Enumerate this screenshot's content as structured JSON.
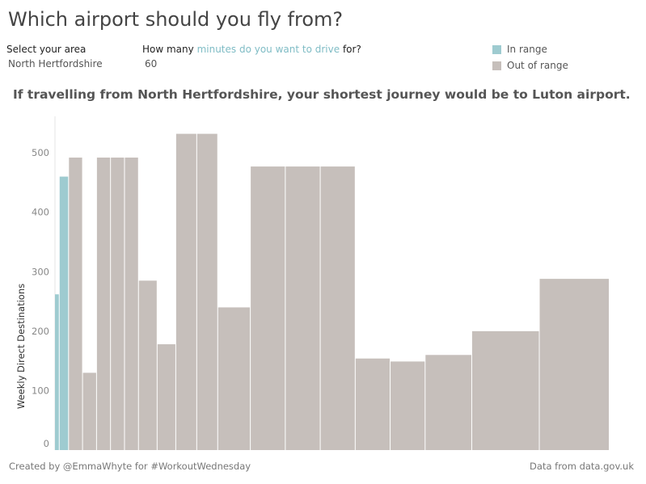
{
  "header": {
    "title": "Which airport should you fly from?"
  },
  "controls": {
    "area": {
      "label": "Select your area",
      "value": "North Hertfordshire"
    },
    "minutes": {
      "label_before": "How many ",
      "label_highlight": "minutes do you want to drive",
      "label_after": " for?",
      "value": "60"
    }
  },
  "legend": {
    "items": [
      {
        "label": "In range",
        "color": "#9ecbd0"
      },
      {
        "label": "Out of range",
        "color": "#c6bfbb"
      }
    ]
  },
  "headline": "If travelling from North Hertfordshire, your shortest journey would be to Luton airport.",
  "chart_data": {
    "type": "bar",
    "ylabel": "Weekly Direct Destinations",
    "xlabel": "",
    "ylim": [
      0,
      560
    ],
    "yticks": [
      0,
      100,
      200,
      300,
      400,
      500
    ],
    "grid": false,
    "legend_position": "top-right",
    "note": "variable-width bars; widths in relative units",
    "bars": [
      {
        "value": 262,
        "width": 1,
        "status": "In range"
      },
      {
        "value": 460,
        "width": 2,
        "status": "In range"
      },
      {
        "value": 492,
        "width": 3,
        "status": "Out of range"
      },
      {
        "value": 130,
        "width": 3,
        "status": "Out of range"
      },
      {
        "value": 492,
        "width": 3,
        "status": "Out of range"
      },
      {
        "value": 492,
        "width": 3,
        "status": "Out of range"
      },
      {
        "value": 492,
        "width": 3,
        "status": "Out of range"
      },
      {
        "value": 285,
        "width": 4,
        "status": "Out of range"
      },
      {
        "value": 178,
        "width": 4,
        "status": "Out of range"
      },
      {
        "value": 532,
        "width": 4.5,
        "status": "Out of range"
      },
      {
        "value": 532,
        "width": 4.5,
        "status": "Out of range"
      },
      {
        "value": 240,
        "width": 7,
        "status": "Out of range"
      },
      {
        "value": 477,
        "width": 7.5,
        "status": "Out of range"
      },
      {
        "value": 477,
        "width": 7.5,
        "status": "Out of range"
      },
      {
        "value": 477,
        "width": 7.5,
        "status": "Out of range"
      },
      {
        "value": 154,
        "width": 7.5,
        "status": "Out of range"
      },
      {
        "value": 149,
        "width": 7.5,
        "status": "Out of range"
      },
      {
        "value": 160,
        "width": 10,
        "status": "Out of range"
      },
      {
        "value": 200,
        "width": 14.5,
        "status": "Out of range"
      },
      {
        "value": 288,
        "width": 15,
        "status": "Out of range"
      }
    ]
  },
  "footer": {
    "left": "Created by @EmmaWhyte for #WorkoutWednesday",
    "right": "Data from data.gov.uk"
  }
}
